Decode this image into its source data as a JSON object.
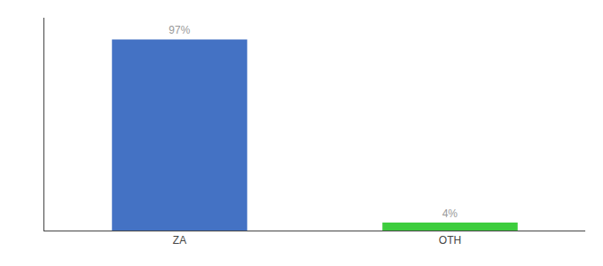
{
  "chart_data": {
    "type": "bar",
    "categories": [
      "ZA",
      "OTH"
    ],
    "values": [
      97,
      4
    ],
    "colors": [
      "#4472c4",
      "#3dcd3d"
    ],
    "data_labels": true,
    "value_labels": [
      "97%",
      "4%"
    ],
    "ylim": [
      0,
      108
    ],
    "yticks": [],
    "tick_labels": "x",
    "grid": false
  }
}
